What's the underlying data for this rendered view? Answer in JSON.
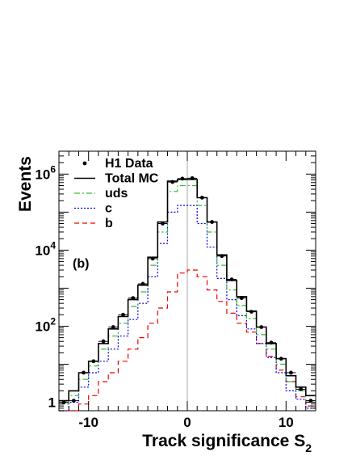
{
  "chart_data": {
    "type": "step-histogram",
    "xlabel": "Track significance S",
    "xlabel_subscript": "2",
    "ylabel": "Events",
    "panel_label": "(b)",
    "y_scale": "log",
    "xlim": [
      -13,
      13
    ],
    "ylim": [
      0.6,
      4000000
    ],
    "x_ticks": [
      -10,
      0,
      10
    ],
    "x_tick_labels": [
      "-10",
      "0",
      "10"
    ],
    "y_ticks": [
      1,
      100,
      10000,
      1000000
    ],
    "y_tick_labels": [
      {
        "base": "1",
        "exp": ""
      },
      {
        "base": "10",
        "exp": "2"
      },
      {
        "base": "10",
        "exp": "4"
      },
      {
        "base": "10",
        "exp": "6"
      }
    ],
    "bin_edges": [
      -13,
      -12,
      -11,
      -10,
      -9,
      -8,
      -7,
      -6,
      -5,
      -4,
      -3,
      -2,
      -1,
      0,
      1,
      2,
      3,
      4,
      5,
      6,
      7,
      8,
      9,
      10,
      11,
      12,
      13
    ],
    "series": [
      {
        "name": "Total MC",
        "style": "solid",
        "color": "#000000",
        "values": [
          1.1,
          2,
          6,
          12,
          35,
          85,
          180,
          500,
          1200,
          6500,
          55000,
          650000,
          720000,
          720000,
          240000,
          55000,
          7500,
          1600,
          600,
          250,
          95,
          35,
          14,
          5,
          2.5,
          1.5
        ]
      },
      {
        "name": "uds",
        "style": "dashdot",
        "color": "#33bb33",
        "values": [
          0.9,
          1.5,
          4,
          9,
          25,
          55,
          120,
          330,
          800,
          4000,
          30000,
          350000,
          500000,
          500000,
          150000,
          30000,
          4000,
          900,
          350,
          160,
          60,
          25,
          10,
          3.5,
          2,
          1.1
        ]
      },
      {
        "name": "c",
        "style": "dotted",
        "color": "#0000ee",
        "values": [
          0.6,
          1,
          2.5,
          6,
          12,
          25,
          55,
          150,
          400,
          2000,
          15000,
          100000,
          150000,
          150000,
          50000,
          12000,
          1800,
          500,
          190,
          85,
          35,
          15,
          6,
          2,
          1.2,
          0.7
        ]
      },
      {
        "name": "b",
        "style": "dashed",
        "color": "#ee0000",
        "values": [
          0.4,
          0.6,
          0.9,
          1.5,
          3.5,
          6,
          12,
          25,
          50,
          120,
          300,
          800,
          2500,
          3000,
          2000,
          900,
          450,
          220,
          120,
          70,
          35,
          16,
          7,
          3.5,
          1.4,
          0.8
        ]
      },
      {
        "name": "H1 Data",
        "style": "points",
        "color": "#000000",
        "x": [
          -12.5,
          -11.5,
          -10.5,
          -9.5,
          -8.5,
          -7.5,
          -6.5,
          -5.5,
          -4.5,
          -3.5,
          -2.5,
          -1.5,
          -0.5,
          0.5,
          1.5,
          2.5,
          3.5,
          4.5,
          5.5,
          6.5,
          7.5,
          8.5,
          9.5,
          10.5,
          11.5,
          12.5
        ],
        "values": [
          1.0,
          1.1,
          6,
          12,
          40,
          95,
          200,
          550,
          1300,
          6000,
          50000,
          620000,
          760000,
          780000,
          240000,
          55000,
          7000,
          1700,
          550,
          240,
          95,
          37,
          14,
          6,
          2.2,
          1.1
        ]
      }
    ],
    "legend": {
      "placement": "top-left",
      "entries": [
        "H1 Data",
        "Total MC",
        "uds",
        "c",
        "b"
      ]
    },
    "vertical_reference_line": {
      "x": 0,
      "color": "#aaaaaa"
    }
  }
}
